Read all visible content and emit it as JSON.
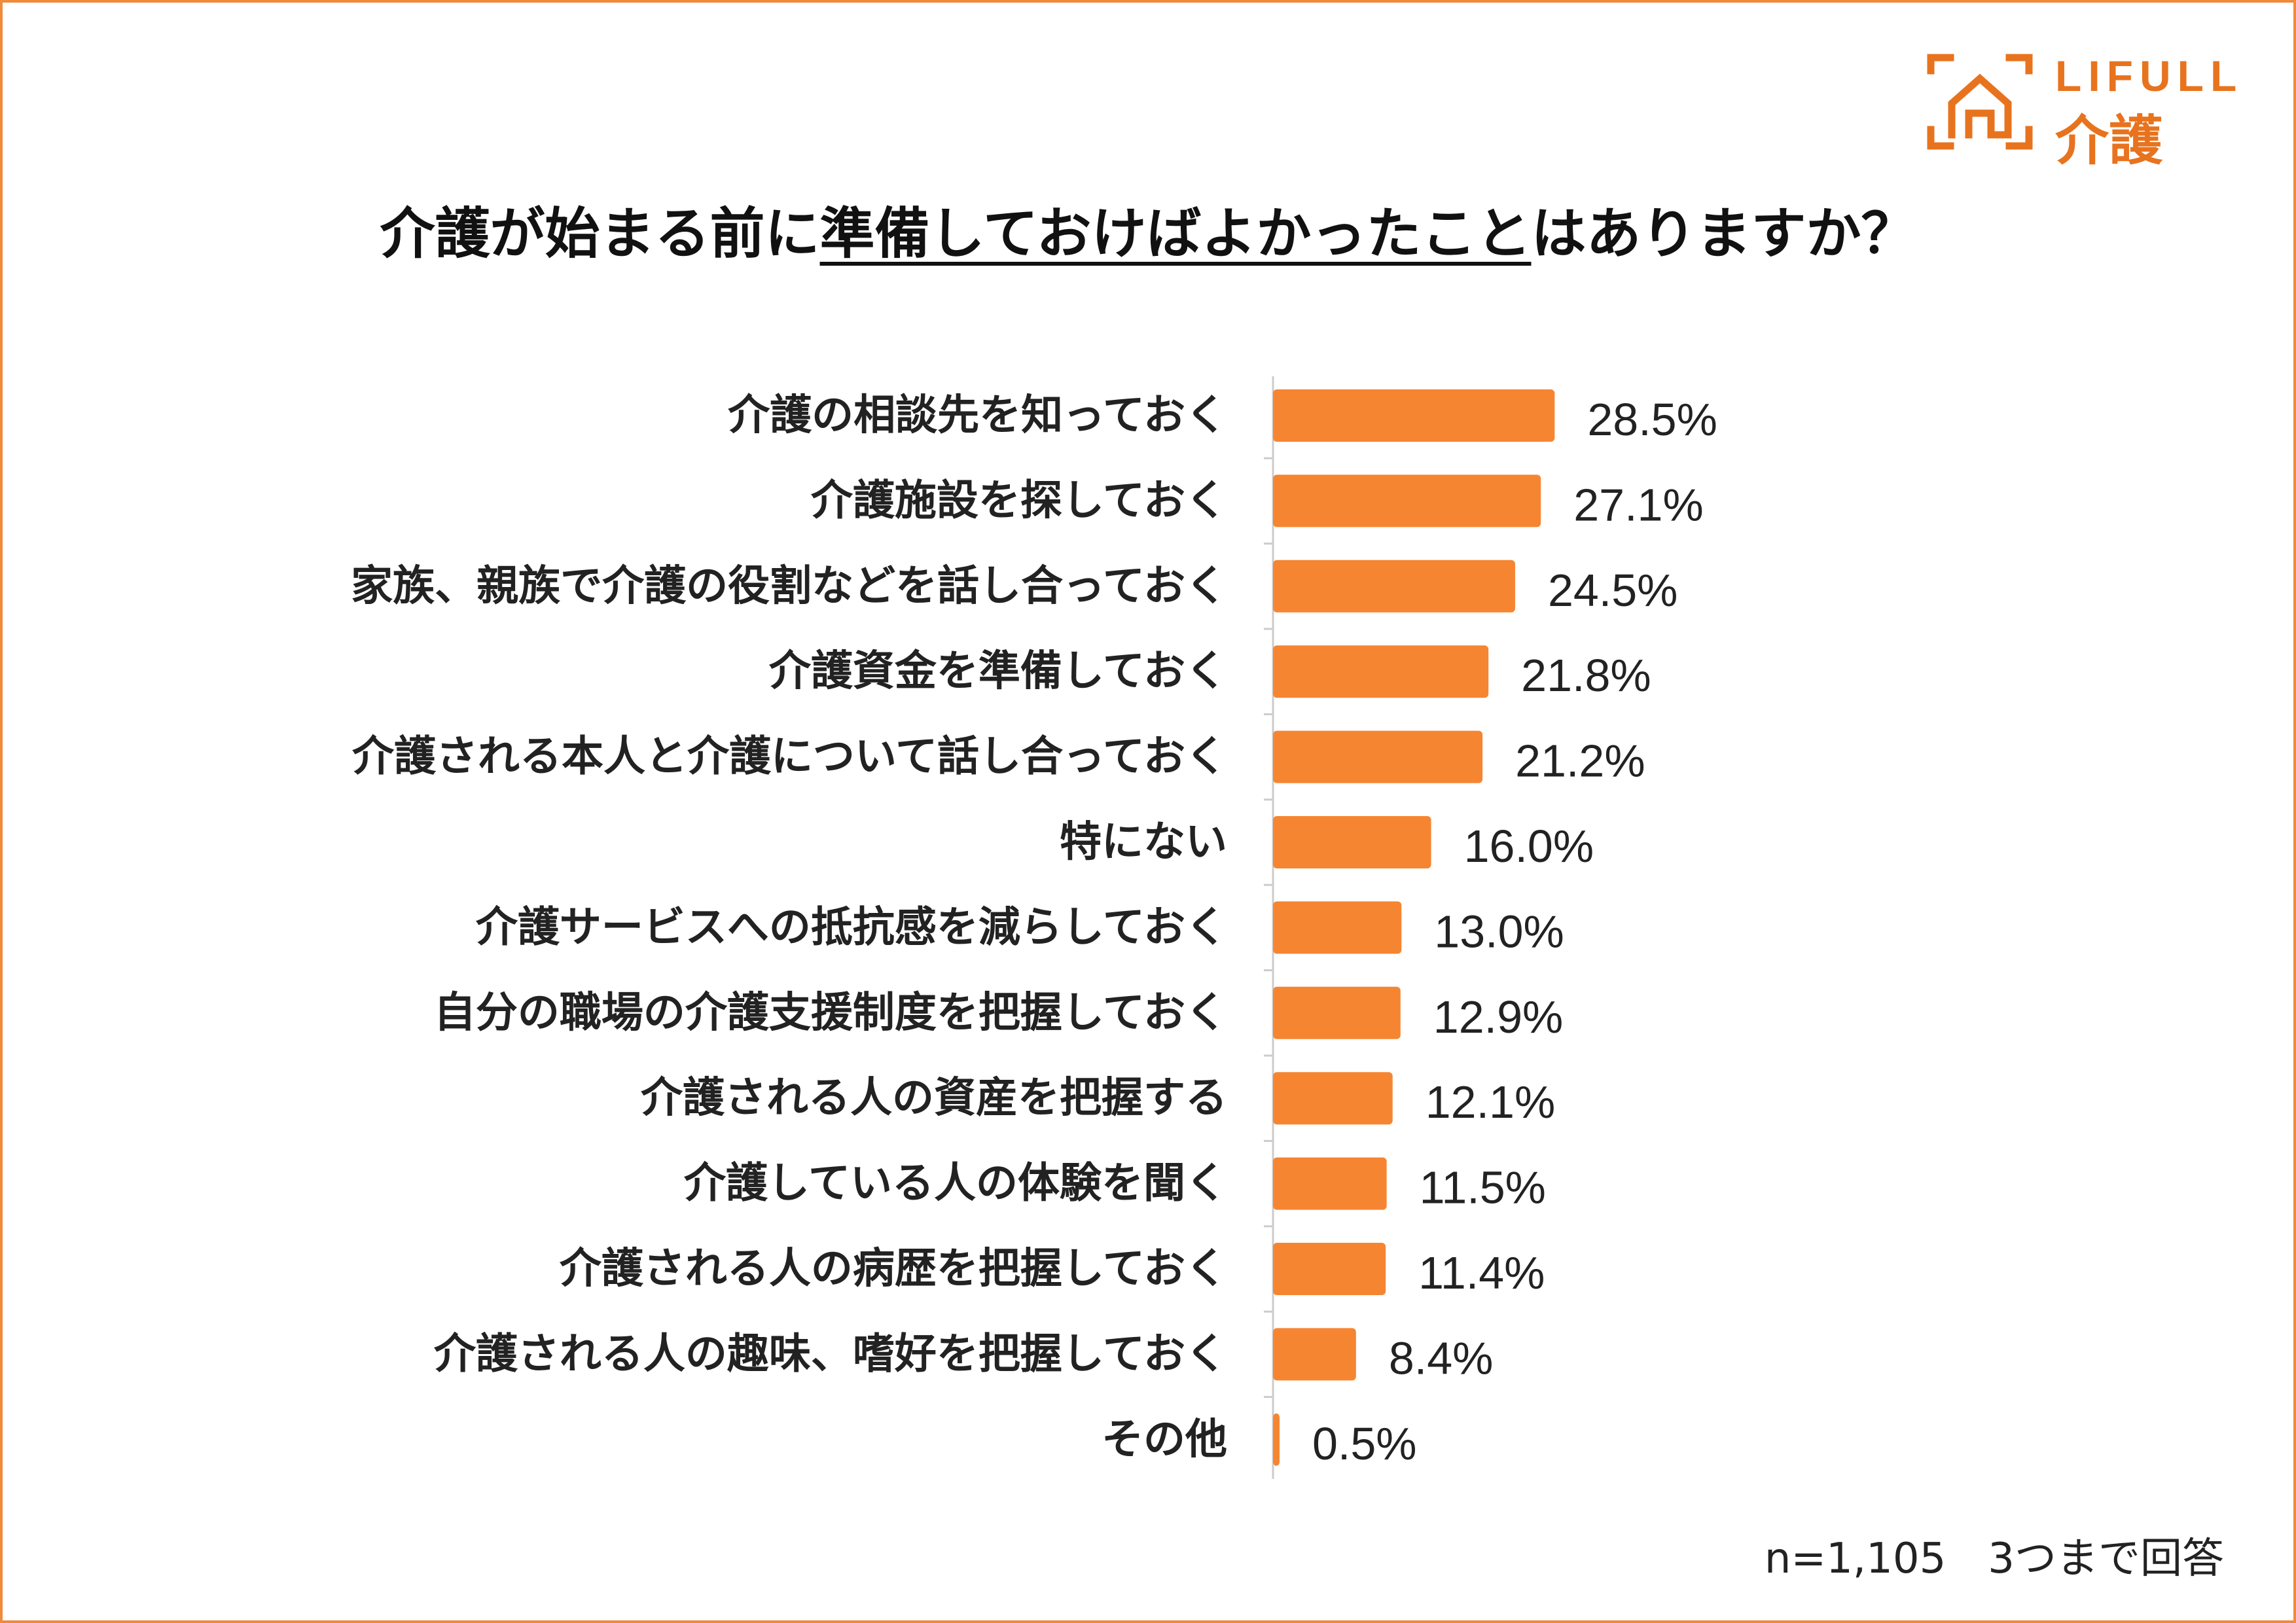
{
  "brand": {
    "name": "LIFULL",
    "sub": "介護",
    "color": "#e8731e",
    "logo_icon": "house-icon"
  },
  "title": {
    "pre": "介護が始まる前に",
    "underlined": "準備しておけばよかったこと",
    "post": "はありますか？"
  },
  "footnote": "n=1,105　3つまで回答",
  "colors": {
    "bar": "#f68531",
    "frame": "#f08a3c",
    "text": "#222222"
  },
  "chart_data": {
    "type": "bar",
    "orientation": "horizontal",
    "title": "介護が始まる前に準備しておけばよかったことはありますか？",
    "xlim": [
      0,
      100
    ],
    "unit": "%",
    "categories": [
      "介護の相談先を知っておく",
      "介護施設を探しておく",
      "家族、親族で介護の役割などを話し合っておく",
      "介護資金を準備しておく",
      "介護される本人と介護について話し合っておく",
      "特にない",
      "介護サービスへの抵抗感を減らしておく",
      "自分の職場の介護支援制度を把握しておく",
      "介護される人の資産を把握する",
      "介護している人の体験を聞く",
      "介護される人の病歴を把握しておく",
      "介護される人の趣味、嗜好を把握しておく",
      "その他"
    ],
    "values": [
      28.5,
      27.1,
      24.5,
      21.8,
      21.2,
      16.0,
      13.0,
      12.9,
      12.1,
      11.5,
      11.4,
      8.4,
      0.5
    ],
    "value_labels": [
      "28.5%",
      "27.1%",
      "24.5%",
      "21.8%",
      "21.2%",
      "16.0%",
      "13.0%",
      "12.9%",
      "12.1%",
      "11.5%",
      "11.4%",
      "8.4%",
      "0.5%"
    ]
  }
}
